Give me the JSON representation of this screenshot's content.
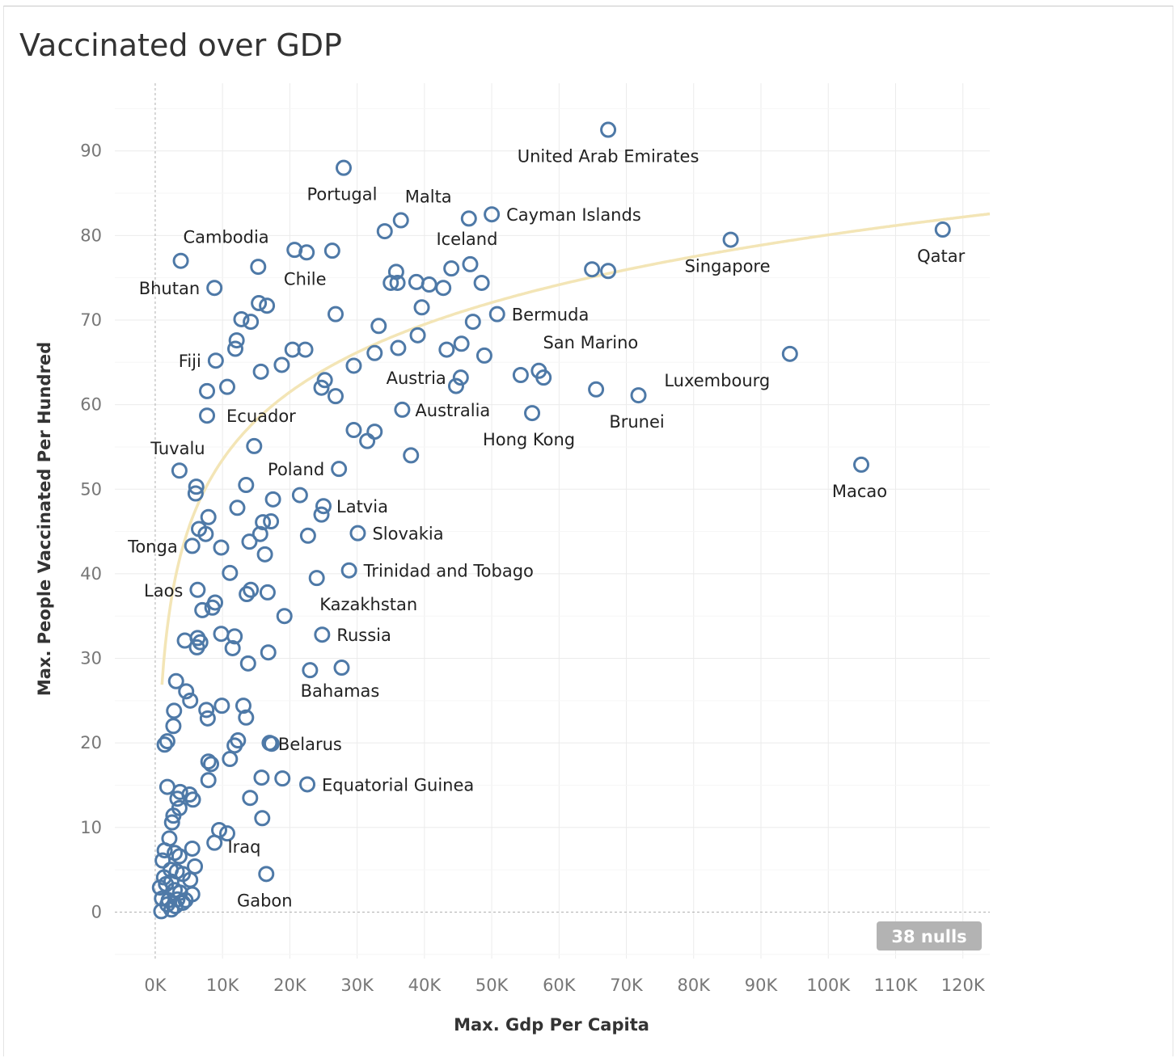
{
  "title": "Vaccinated over GDP",
  "colors": {
    "marker": "#4e79a7",
    "trend": "#f3e5b6",
    "grid": "#ebebeb",
    "zero_line": "#b0b0b0",
    "badge": "#b3b3b3"
  },
  "nulls_badge": "38 nulls",
  "chart_data": {
    "type": "scatter",
    "title": "Vaccinated over GDP",
    "xlabel": "Max. Gdp Per Capita",
    "ylabel": "Max. People Vaccinated Per Hundred",
    "xlim": [
      -6000,
      124000
    ],
    "ylim": [
      -5.5,
      98
    ],
    "x_ticks": [
      0,
      10000,
      20000,
      30000,
      40000,
      50000,
      60000,
      70000,
      80000,
      90000,
      100000,
      110000,
      120000
    ],
    "x_tick_labels": [
      "0K",
      "10K",
      "20K",
      "30K",
      "40K",
      "50K",
      "60K",
      "70K",
      "80K",
      "90K",
      "100K",
      "110K",
      "120K"
    ],
    "y_ticks": [
      0,
      10,
      20,
      30,
      40,
      50,
      60,
      70,
      80,
      90
    ],
    "y_tick_labels": [
      "0",
      "10",
      "20",
      "30",
      "40",
      "50",
      "60",
      "70",
      "80",
      "90"
    ],
    "grid": true,
    "trend_line": {
      "type": "logarithmic",
      "a": -52.9,
      "b": 11.55
    },
    "labeled_points": [
      {
        "x": 67300,
        "y": 92.5,
        "label": "United Arab Emirates"
      },
      {
        "x": 28000,
        "y": 88,
        "label": "Portugal"
      },
      {
        "x": 36500,
        "y": 81.8,
        "label": "Malta"
      },
      {
        "x": 50000,
        "y": 82.5,
        "label": "Cayman Islands"
      },
      {
        "x": 85500,
        "y": 79.5,
        "label": "Singapore"
      },
      {
        "x": 117000,
        "y": 80.7,
        "label": "Qatar"
      },
      {
        "x": 3800,
        "y": 77,
        "label": "Cambodia"
      },
      {
        "x": 8800,
        "y": 73.8,
        "label": "Bhutan"
      },
      {
        "x": 22500,
        "y": 78,
        "label": "Chile"
      },
      {
        "x": 46800,
        "y": 76.6,
        "label": "Iceland"
      },
      {
        "x": 50800,
        "y": 70.7,
        "label": "Bermuda"
      },
      {
        "x": 57000,
        "y": 64,
        "label": "San Marino"
      },
      {
        "x": 9000,
        "y": 65.2,
        "label": "Fiji"
      },
      {
        "x": 45400,
        "y": 63.2,
        "label": "Austria"
      },
      {
        "x": 94300,
        "y": 66,
        "label": "Luxembourg"
      },
      {
        "x": 7700,
        "y": 58.7,
        "label": "Ecuador"
      },
      {
        "x": 36700,
        "y": 59.4,
        "label": "Australia"
      },
      {
        "x": 56000,
        "y": 59,
        "label": "Hong Kong"
      },
      {
        "x": 71800,
        "y": 61.1,
        "label": "Brunei"
      },
      {
        "x": 3600,
        "y": 52.2,
        "label": "Tuvalu"
      },
      {
        "x": 27300,
        "y": 52.4,
        "label": "Poland"
      },
      {
        "x": 104900,
        "y": 52.9,
        "label": "Macao"
      },
      {
        "x": 25000,
        "y": 48,
        "label": "Latvia"
      },
      {
        "x": 30100,
        "y": 44.8,
        "label": "Slovakia"
      },
      {
        "x": 5500,
        "y": 43.3,
        "label": "Tonga"
      },
      {
        "x": 28800,
        "y": 40.4,
        "label": "Trinidad and Tobago"
      },
      {
        "x": 6300,
        "y": 38.1,
        "label": "Laos"
      },
      {
        "x": 24000,
        "y": 39.5,
        "label": "Kazakhstan"
      },
      {
        "x": 24800,
        "y": 32.8,
        "label": "Russia"
      },
      {
        "x": 27700,
        "y": 28.9,
        "label": "Bahamas"
      },
      {
        "x": 17300,
        "y": 19.9,
        "label": "Belarus"
      },
      {
        "x": 22600,
        "y": 15.1,
        "label": "Equatorial Guinea"
      },
      {
        "x": 10700,
        "y": 9.3,
        "label": "Iraq"
      },
      {
        "x": 16500,
        "y": 4.5,
        "label": "Gabon"
      }
    ],
    "points": [
      {
        "x": 34100,
        "y": 80.5
      },
      {
        "x": 46600,
        "y": 82
      },
      {
        "x": 20700,
        "y": 78.3
      },
      {
        "x": 26300,
        "y": 78.2
      },
      {
        "x": 15300,
        "y": 76.3
      },
      {
        "x": 35800,
        "y": 75.7
      },
      {
        "x": 35000,
        "y": 74.4
      },
      {
        "x": 36000,
        "y": 74.4
      },
      {
        "x": 38800,
        "y": 74.5
      },
      {
        "x": 40700,
        "y": 74.2
      },
      {
        "x": 42800,
        "y": 73.8
      },
      {
        "x": 44000,
        "y": 76.1
      },
      {
        "x": 48500,
        "y": 74.4
      },
      {
        "x": 64900,
        "y": 76
      },
      {
        "x": 67300,
        "y": 75.8
      },
      {
        "x": 15400,
        "y": 72
      },
      {
        "x": 16600,
        "y": 71.7
      },
      {
        "x": 26800,
        "y": 70.7
      },
      {
        "x": 39600,
        "y": 71.5
      },
      {
        "x": 12800,
        "y": 70.1
      },
      {
        "x": 14200,
        "y": 69.8
      },
      {
        "x": 33200,
        "y": 69.3
      },
      {
        "x": 47200,
        "y": 69.8
      },
      {
        "x": 12100,
        "y": 67.6
      },
      {
        "x": 39000,
        "y": 68.2
      },
      {
        "x": 45500,
        "y": 67.2
      },
      {
        "x": 11900,
        "y": 66.6
      },
      {
        "x": 20400,
        "y": 66.5
      },
      {
        "x": 22300,
        "y": 66.5
      },
      {
        "x": 36100,
        "y": 66.7
      },
      {
        "x": 43300,
        "y": 66.5
      },
      {
        "x": 32600,
        "y": 66.1
      },
      {
        "x": 48900,
        "y": 65.8
      },
      {
        "x": 18800,
        "y": 64.7
      },
      {
        "x": 29500,
        "y": 64.6
      },
      {
        "x": 15700,
        "y": 63.9
      },
      {
        "x": 54300,
        "y": 63.5
      },
      {
        "x": 57700,
        "y": 63.2
      },
      {
        "x": 25200,
        "y": 62.9
      },
      {
        "x": 44700,
        "y": 62.2
      },
      {
        "x": 10700,
        "y": 62.1
      },
      {
        "x": 24700,
        "y": 62
      },
      {
        "x": 7700,
        "y": 61.6
      },
      {
        "x": 26800,
        "y": 61
      },
      {
        "x": 65500,
        "y": 61.8
      },
      {
        "x": 29500,
        "y": 57
      },
      {
        "x": 31500,
        "y": 55.7
      },
      {
        "x": 32600,
        "y": 56.8
      },
      {
        "x": 14700,
        "y": 55.1
      },
      {
        "x": 38000,
        "y": 54
      },
      {
        "x": 6100,
        "y": 50.3
      },
      {
        "x": 13500,
        "y": 50.5
      },
      {
        "x": 6000,
        "y": 49.5
      },
      {
        "x": 17500,
        "y": 48.8
      },
      {
        "x": 21500,
        "y": 49.3
      },
      {
        "x": 12200,
        "y": 47.8
      },
      {
        "x": 24700,
        "y": 47
      },
      {
        "x": 7900,
        "y": 46.7
      },
      {
        "x": 16000,
        "y": 46.1
      },
      {
        "x": 17200,
        "y": 46.2
      },
      {
        "x": 6500,
        "y": 45.3
      },
      {
        "x": 7500,
        "y": 44.7
      },
      {
        "x": 15600,
        "y": 44.7
      },
      {
        "x": 14000,
        "y": 43.8
      },
      {
        "x": 22700,
        "y": 44.5
      },
      {
        "x": 9800,
        "y": 43.1
      },
      {
        "x": 16300,
        "y": 42.3
      },
      {
        "x": 11100,
        "y": 40.1
      },
      {
        "x": 13600,
        "y": 37.6
      },
      {
        "x": 14200,
        "y": 38.1
      },
      {
        "x": 16700,
        "y": 37.8
      },
      {
        "x": 8500,
        "y": 36
      },
      {
        "x": 8900,
        "y": 36.6
      },
      {
        "x": 7000,
        "y": 35.7
      },
      {
        "x": 19200,
        "y": 35
      },
      {
        "x": 4400,
        "y": 32.1
      },
      {
        "x": 6300,
        "y": 32.4
      },
      {
        "x": 9800,
        "y": 32.9
      },
      {
        "x": 11800,
        "y": 32.6
      },
      {
        "x": 6700,
        "y": 31.9
      },
      {
        "x": 6200,
        "y": 31.3
      },
      {
        "x": 11500,
        "y": 31.2
      },
      {
        "x": 16800,
        "y": 30.7
      },
      {
        "x": 13800,
        "y": 29.4
      },
      {
        "x": 23000,
        "y": 28.6
      },
      {
        "x": 3100,
        "y": 27.3
      },
      {
        "x": 4600,
        "y": 26.1
      },
      {
        "x": 5200,
        "y": 25
      },
      {
        "x": 2800,
        "y": 23.8
      },
      {
        "x": 7600,
        "y": 23.9
      },
      {
        "x": 9900,
        "y": 24.4
      },
      {
        "x": 13100,
        "y": 24.4
      },
      {
        "x": 13500,
        "y": 23
      },
      {
        "x": 7800,
        "y": 22.9
      },
      {
        "x": 2700,
        "y": 22
      },
      {
        "x": 1800,
        "y": 20.2
      },
      {
        "x": 1400,
        "y": 19.8
      },
      {
        "x": 12300,
        "y": 20.3
      },
      {
        "x": 11800,
        "y": 19.7
      },
      {
        "x": 17000,
        "y": 20
      },
      {
        "x": 11100,
        "y": 18.1
      },
      {
        "x": 7900,
        "y": 17.8
      },
      {
        "x": 8300,
        "y": 17.5
      },
      {
        "x": 7900,
        "y": 15.6
      },
      {
        "x": 15800,
        "y": 15.9
      },
      {
        "x": 18900,
        "y": 15.8
      },
      {
        "x": 1800,
        "y": 14.8
      },
      {
        "x": 3700,
        "y": 14.2
      },
      {
        "x": 5100,
        "y": 13.9
      },
      {
        "x": 3300,
        "y": 13.4
      },
      {
        "x": 5600,
        "y": 13.3
      },
      {
        "x": 14100,
        "y": 13.5
      },
      {
        "x": 3600,
        "y": 12.3
      },
      {
        "x": 2700,
        "y": 11.4
      },
      {
        "x": 2500,
        "y": 10.6
      },
      {
        "x": 15900,
        "y": 11.1
      },
      {
        "x": 9500,
        "y": 9.7
      },
      {
        "x": 8800,
        "y": 8.2
      },
      {
        "x": 2100,
        "y": 8.7
      },
      {
        "x": 5500,
        "y": 7.5
      },
      {
        "x": 1400,
        "y": 7.3
      },
      {
        "x": 2900,
        "y": 7
      },
      {
        "x": 1100,
        "y": 6.1
      },
      {
        "x": 3600,
        "y": 6.6
      },
      {
        "x": 5900,
        "y": 5.4
      },
      {
        "x": 2300,
        "y": 5
      },
      {
        "x": 3200,
        "y": 4.8
      },
      {
        "x": 1300,
        "y": 4.1
      },
      {
        "x": 4100,
        "y": 4.5
      },
      {
        "x": 2400,
        "y": 3.6
      },
      {
        "x": 1600,
        "y": 3.3
      },
      {
        "x": 5200,
        "y": 3.8
      },
      {
        "x": 700,
        "y": 2.9
      },
      {
        "x": 2900,
        "y": 2.6
      },
      {
        "x": 3700,
        "y": 2.3
      },
      {
        "x": 5500,
        "y": 2.1
      },
      {
        "x": 1000,
        "y": 1.6
      },
      {
        "x": 2000,
        "y": 1.4
      },
      {
        "x": 3300,
        "y": 1.5
      },
      {
        "x": 4500,
        "y": 1.4
      },
      {
        "x": 1800,
        "y": 0.9
      },
      {
        "x": 3000,
        "y": 0.7
      },
      {
        "x": 4100,
        "y": 1.1
      },
      {
        "x": 900,
        "y": 0.1
      },
      {
        "x": 2400,
        "y": 0.3
      }
    ]
  }
}
